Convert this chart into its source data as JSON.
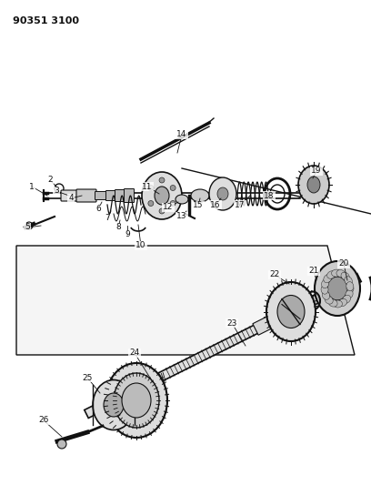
{
  "title_code": "90351 3100",
  "background_color": "#ffffff",
  "fig_width": 4.08,
  "fig_height": 5.33,
  "dpi": 100
}
